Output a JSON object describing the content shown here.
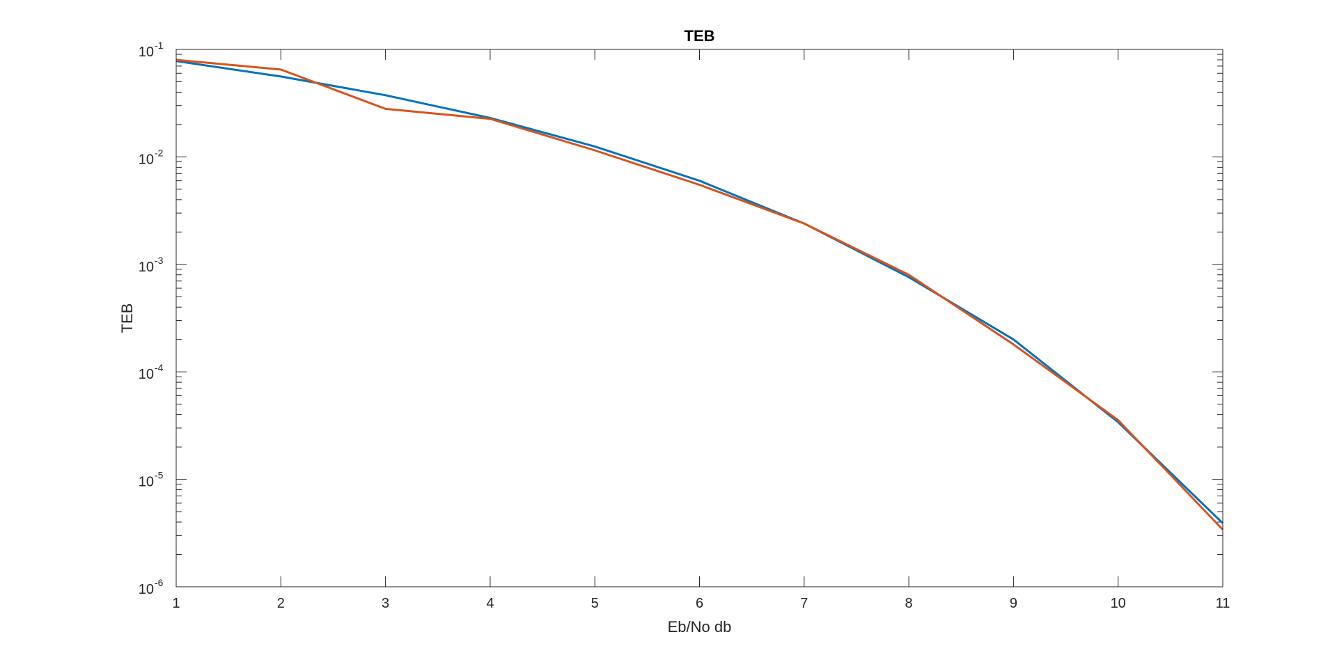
{
  "chart_data": {
    "type": "line",
    "title": "TEB",
    "xlabel": "Eb/No db",
    "ylabel": "TEB",
    "xlim": [
      1,
      11
    ],
    "ylim": [
      1e-06,
      0.1
    ],
    "yscale": "log",
    "grid": false,
    "x_ticks": [
      "1",
      "2",
      "3",
      "4",
      "5",
      "6",
      "7",
      "8",
      "9",
      "10",
      "11"
    ],
    "y_ticks": [
      {
        "value": 1e-06,
        "base": "10",
        "exp": "-6"
      },
      {
        "value": 1e-05,
        "base": "10",
        "exp": "-5"
      },
      {
        "value": 0.0001,
        "base": "10",
        "exp": "-4"
      },
      {
        "value": 0.001,
        "base": "10",
        "exp": "-3"
      },
      {
        "value": 0.01,
        "base": "10",
        "exp": "-2"
      },
      {
        "value": 0.1,
        "base": "10",
        "exp": "-1"
      }
    ],
    "x": [
      1,
      2,
      3,
      4,
      5,
      6,
      7,
      8,
      9,
      10,
      11
    ],
    "series": [
      {
        "color": "#0072BD",
        "values": [
          0.078,
          0.056,
          0.0375,
          0.023,
          0.0125,
          0.006,
          0.0024,
          0.00076,
          0.0002,
          3.4e-05,
          3.9e-06
        ]
      },
      {
        "color": "#D95319",
        "values": [
          0.08,
          0.065,
          0.028,
          0.0226,
          0.0115,
          0.0055,
          0.0024,
          0.0008,
          0.00018,
          3.55e-05,
          3.4e-06
        ]
      }
    ]
  }
}
